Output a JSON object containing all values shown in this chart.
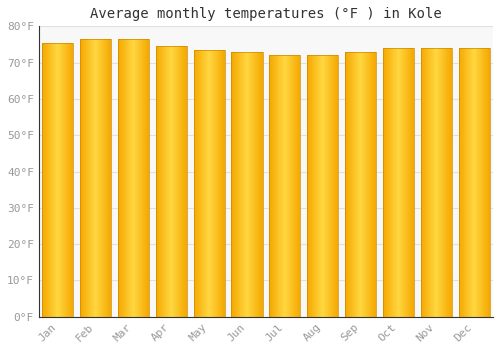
{
  "months": [
    "Jan",
    "Feb",
    "Mar",
    "Apr",
    "May",
    "Jun",
    "Jul",
    "Aug",
    "Sep",
    "Oct",
    "Nov",
    "Dec"
  ],
  "values": [
    75.5,
    76.5,
    76.5,
    74.5,
    73.5,
    73.0,
    72.0,
    72.0,
    73.0,
    74.0,
    74.0,
    74.0
  ],
  "bar_color_center": "#FFD740",
  "bar_color_edge": "#F5A800",
  "bar_edge_color": "#CC8800",
  "title": "Average monthly temperatures (°F ) in Kole",
  "ylim": [
    0,
    80
  ],
  "yticks": [
    0,
    10,
    20,
    30,
    40,
    50,
    60,
    70,
    80
  ],
  "ytick_labels": [
    "0°F",
    "10°F",
    "20°F",
    "30°F",
    "40°F",
    "50°F",
    "60°F",
    "70°F",
    "80°F"
  ],
  "background_color": "#ffffff",
  "plot_bg_color": "#f8f8f8",
  "grid_color": "#e0e0e0",
  "title_fontsize": 10,
  "tick_fontsize": 8,
  "tick_color": "#999999",
  "bar_width": 0.82
}
